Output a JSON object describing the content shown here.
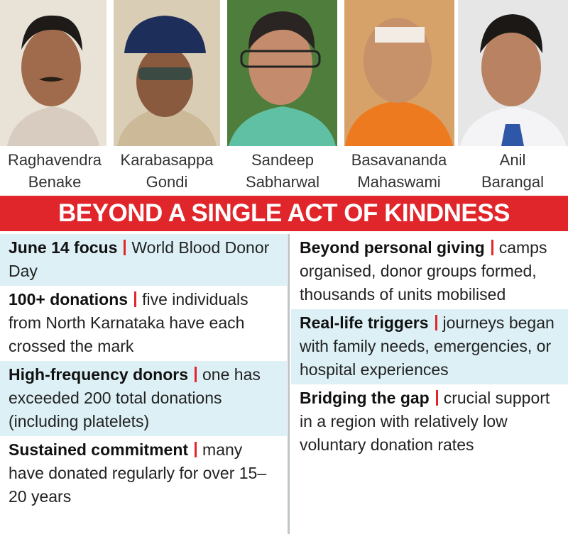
{
  "people": [
    {
      "first": "Raghavendra",
      "last": "Benake"
    },
    {
      "first": "Karabasappa",
      "last": "Gondi"
    },
    {
      "first": "Sandeep",
      "last": "Sabharwal"
    },
    {
      "first": "Basavananda",
      "last": "Mahaswami"
    },
    {
      "first": "Anil",
      "last": "Barangal"
    }
  ],
  "banner": "BEYOND A SINGLE ACT OF KINDNESS",
  "left_items": [
    {
      "heading": "June 14 focus",
      "text": "World Blood Donor Day"
    },
    {
      "heading": "100+ donations",
      "text": "five individuals from North Karnataka have each crossed the mark"
    },
    {
      "heading": "High-frequency donors",
      "text": "one has exceeded 200 total donations (including platelets)"
    },
    {
      "heading": "Sustained commitment",
      "text": "many have donated regularly for over 15–20 years"
    }
  ],
  "right_items": [
    {
      "heading": "Beyond personal giving",
      "text": "camps organised, donor groups formed, thousands of units mobilised"
    },
    {
      "heading": "Real-life triggers",
      "text": "journeys began with family needs, emergencies, or hospital experiences"
    },
    {
      "heading": "Bridging the gap",
      "text": "crucial support in a region with relatively low voluntary donation rates"
    }
  ]
}
